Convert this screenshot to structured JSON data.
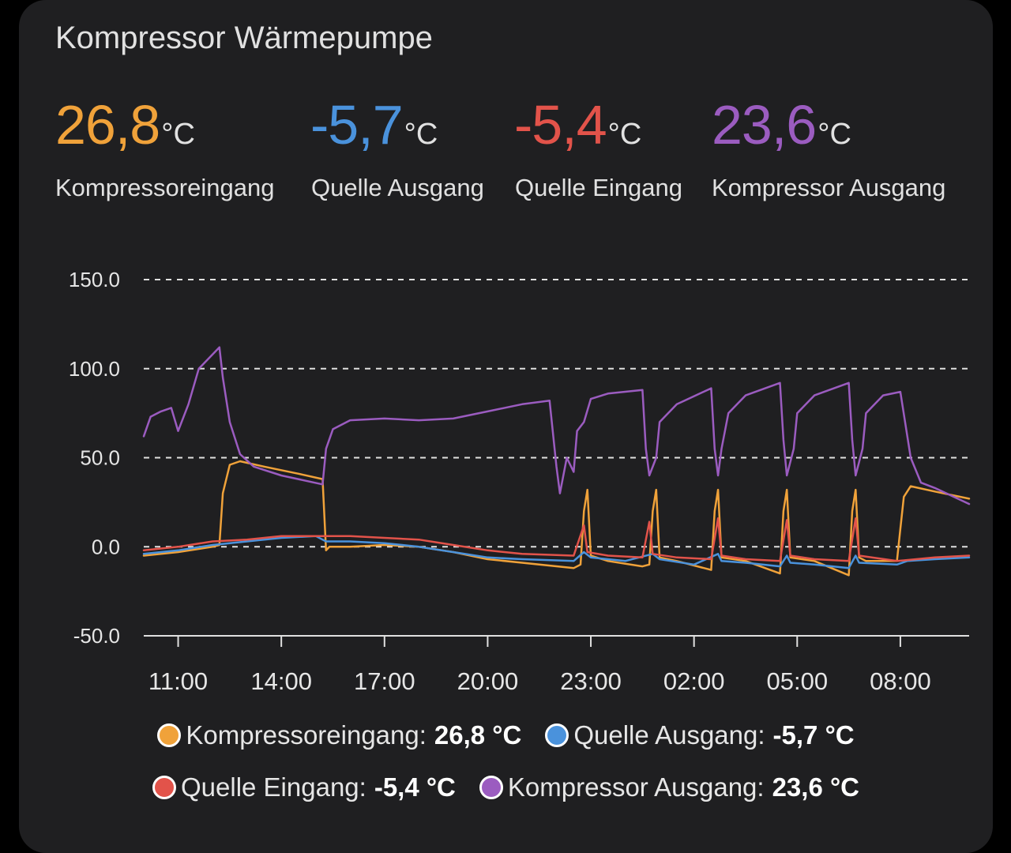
{
  "card": {
    "title": "Kompressor Wärmepumpe"
  },
  "stats": [
    {
      "value": "26,8",
      "unit": "°C",
      "name": "Kompressoreingang",
      "color": "#f0a23a"
    },
    {
      "value": "-5,7",
      "unit": "°C",
      "name": "Quelle Ausgang",
      "color": "#4a92dc"
    },
    {
      "value": "-5,4",
      "unit": "°C",
      "name": "Quelle Eingang",
      "color": "#e2534a"
    },
    {
      "value": "23,6",
      "unit": "°C",
      "name": "Kompressor Ausgang",
      "color": "#9b5cc0"
    }
  ],
  "legend": [
    {
      "label": "Kompressoreingang:",
      "value": "26,8 °C",
      "color": "#f0a23a"
    },
    {
      "label": "Quelle Ausgang:",
      "value": "-5,7 °C",
      "color": "#4a92dc"
    },
    {
      "label": "Quelle Eingang:",
      "value": "-5,4 °C",
      "color": "#e2534a"
    },
    {
      "label": "Kompressor Ausgang:",
      "value": "23,6 °C",
      "color": "#9b5cc0"
    }
  ],
  "chart_data": {
    "type": "line",
    "title": "Kompressor Wärmepumpe",
    "xlabel": "",
    "ylabel": "°C",
    "x_unit": "hours since 11:00",
    "xlim": [
      -1,
      23
    ],
    "ylim": [
      -50,
      150
    ],
    "yticks": [
      -50,
      0,
      50,
      100,
      150
    ],
    "ytick_labels": [
      "-50.0",
      "0.0",
      "50.0",
      "100.0",
      "150.0"
    ],
    "xticks": [
      0,
      3,
      6,
      9,
      12,
      15,
      18,
      21
    ],
    "xtick_labels": [
      "11:00",
      "14:00",
      "17:00",
      "20:00",
      "23:00",
      "02:00",
      "05:00",
      "08:00"
    ],
    "grid": true,
    "series": [
      {
        "name": "Kompressoreingang",
        "color": "#f0a23a",
        "points": [
          [
            -1,
            -5
          ],
          [
            0,
            -3
          ],
          [
            1,
            0
          ],
          [
            1.2,
            1
          ],
          [
            1.3,
            30
          ],
          [
            1.5,
            46
          ],
          [
            1.8,
            48
          ],
          [
            2.5,
            45
          ],
          [
            3.5,
            41
          ],
          [
            4.2,
            38
          ],
          [
            4.3,
            -2
          ],
          [
            4.4,
            0
          ],
          [
            5,
            0
          ],
          [
            6,
            1
          ],
          [
            7,
            0
          ],
          [
            8,
            -3
          ],
          [
            9,
            -7
          ],
          [
            10,
            -9
          ],
          [
            11.5,
            -12
          ],
          [
            11.7,
            -10
          ],
          [
            11.8,
            20
          ],
          [
            11.9,
            32
          ],
          [
            12,
            -5
          ],
          [
            12.5,
            -8
          ],
          [
            13.5,
            -11
          ],
          [
            13.7,
            -10
          ],
          [
            13.8,
            20
          ],
          [
            13.9,
            32
          ],
          [
            14,
            -6
          ],
          [
            14.5,
            -8
          ],
          [
            15.5,
            -13
          ],
          [
            15.6,
            20
          ],
          [
            15.7,
            32
          ],
          [
            15.8,
            -6
          ],
          [
            16.5,
            -8
          ],
          [
            17.5,
            -15
          ],
          [
            17.6,
            20
          ],
          [
            17.7,
            32
          ],
          [
            17.8,
            -6
          ],
          [
            18.5,
            -8
          ],
          [
            19.5,
            -16
          ],
          [
            19.6,
            20
          ],
          [
            19.7,
            32
          ],
          [
            19.8,
            -6
          ],
          [
            20,
            -8
          ],
          [
            20.9,
            -8
          ],
          [
            21,
            10
          ],
          [
            21.1,
            28
          ],
          [
            21.3,
            34
          ],
          [
            22,
            31
          ],
          [
            23,
            27
          ]
        ]
      },
      {
        "name": "Quelle Ausgang",
        "color": "#4a92dc",
        "points": [
          [
            -1,
            -4
          ],
          [
            0,
            -2
          ],
          [
            1,
            1
          ],
          [
            2,
            3
          ],
          [
            3,
            5
          ],
          [
            4,
            6
          ],
          [
            4.3,
            3
          ],
          [
            5,
            3
          ],
          [
            6,
            2
          ],
          [
            7,
            0
          ],
          [
            8,
            -3
          ],
          [
            9,
            -6
          ],
          [
            10,
            -7
          ],
          [
            11.5,
            -8
          ],
          [
            11.8,
            -3
          ],
          [
            12,
            -6
          ],
          [
            13,
            -8
          ],
          [
            13.8,
            -4
          ],
          [
            14,
            -7
          ],
          [
            15,
            -10
          ],
          [
            15.7,
            -4
          ],
          [
            15.8,
            -8
          ],
          [
            16.5,
            -9
          ],
          [
            17.5,
            -11
          ],
          [
            17.7,
            -5
          ],
          [
            17.8,
            -9
          ],
          [
            18.5,
            -10
          ],
          [
            19.5,
            -12
          ],
          [
            19.7,
            -5
          ],
          [
            19.8,
            -9
          ],
          [
            20.9,
            -10
          ],
          [
            21.2,
            -8
          ],
          [
            22,
            -7
          ],
          [
            23,
            -6
          ]
        ]
      },
      {
        "name": "Quelle Eingang",
        "color": "#e2534a",
        "points": [
          [
            -1,
            -2
          ],
          [
            0,
            0
          ],
          [
            1,
            3
          ],
          [
            2,
            4
          ],
          [
            3,
            6
          ],
          [
            4,
            6
          ],
          [
            5,
            6
          ],
          [
            6,
            5
          ],
          [
            7,
            4
          ],
          [
            8,
            1
          ],
          [
            9,
            -2
          ],
          [
            10,
            -4
          ],
          [
            11.5,
            -5
          ],
          [
            11.8,
            12
          ],
          [
            11.9,
            -3
          ],
          [
            12.5,
            -5
          ],
          [
            13.5,
            -6
          ],
          [
            13.7,
            14
          ],
          [
            13.8,
            -4
          ],
          [
            14.5,
            -6
          ],
          [
            15.5,
            -7
          ],
          [
            15.7,
            16
          ],
          [
            15.8,
            -5
          ],
          [
            16.5,
            -7
          ],
          [
            17.5,
            -8
          ],
          [
            17.7,
            15
          ],
          [
            17.8,
            -5
          ],
          [
            18.5,
            -7
          ],
          [
            19.5,
            -8
          ],
          [
            19.7,
            16
          ],
          [
            19.8,
            -5
          ],
          [
            20.9,
            -8
          ],
          [
            22,
            -6
          ],
          [
            23,
            -5
          ]
        ]
      },
      {
        "name": "Kompressor Ausgang",
        "color": "#9b5cc0",
        "points": [
          [
            -1,
            62
          ],
          [
            -0.8,
            73
          ],
          [
            -0.5,
            76
          ],
          [
            -0.2,
            78
          ],
          [
            0,
            65
          ],
          [
            0.3,
            80
          ],
          [
            0.6,
            100
          ],
          [
            1,
            108
          ],
          [
            1.2,
            112
          ],
          [
            1.3,
            95
          ],
          [
            1.5,
            70
          ],
          [
            1.8,
            52
          ],
          [
            2.2,
            45
          ],
          [
            3,
            40
          ],
          [
            4.2,
            35
          ],
          [
            4.3,
            55
          ],
          [
            4.5,
            66
          ],
          [
            5,
            71
          ],
          [
            6,
            72
          ],
          [
            7,
            71
          ],
          [
            8,
            72
          ],
          [
            9,
            76
          ],
          [
            10,
            80
          ],
          [
            10.8,
            82
          ],
          [
            11,
            45
          ],
          [
            11.1,
            30
          ],
          [
            11.3,
            50
          ],
          [
            11.5,
            42
          ],
          [
            11.6,
            65
          ],
          [
            11.8,
            70
          ],
          [
            12,
            83
          ],
          [
            12.5,
            86
          ],
          [
            13.5,
            88
          ],
          [
            13.6,
            55
          ],
          [
            13.7,
            40
          ],
          [
            13.9,
            50
          ],
          [
            14,
            70
          ],
          [
            14.5,
            80
          ],
          [
            15.5,
            89
          ],
          [
            15.6,
            55
          ],
          [
            15.7,
            40
          ],
          [
            15.8,
            55
          ],
          [
            16,
            75
          ],
          [
            16.5,
            85
          ],
          [
            17.5,
            92
          ],
          [
            17.6,
            60
          ],
          [
            17.7,
            40
          ],
          [
            17.9,
            55
          ],
          [
            18,
            75
          ],
          [
            18.5,
            85
          ],
          [
            19.5,
            92
          ],
          [
            19.6,
            60
          ],
          [
            19.7,
            40
          ],
          [
            19.9,
            55
          ],
          [
            20,
            75
          ],
          [
            20.5,
            85
          ],
          [
            21,
            87
          ],
          [
            21.3,
            50
          ],
          [
            21.6,
            36
          ],
          [
            22,
            33
          ],
          [
            23,
            24
          ]
        ]
      }
    ]
  }
}
